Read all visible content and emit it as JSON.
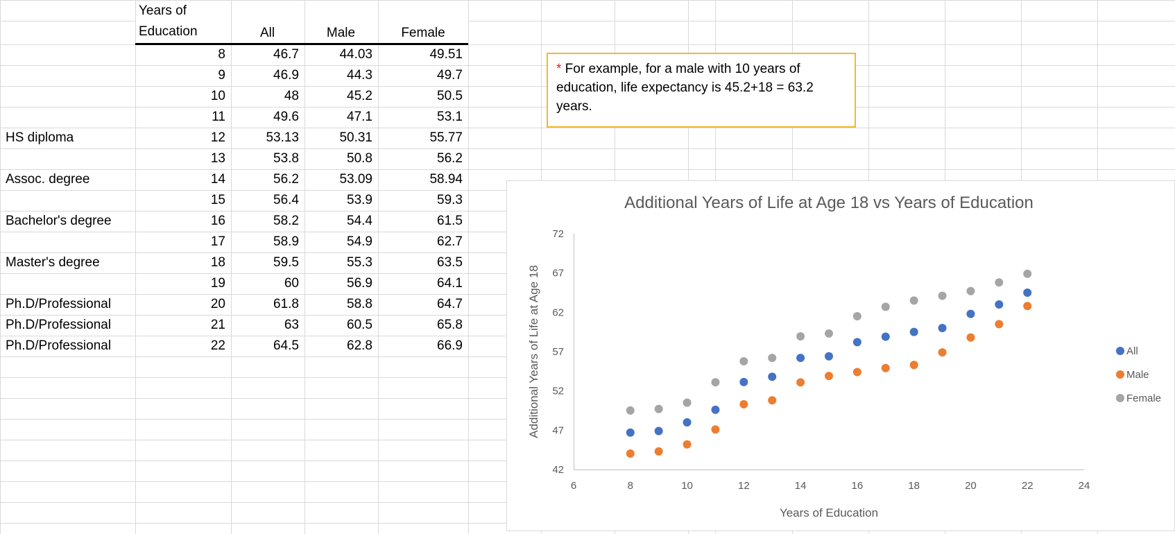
{
  "table": {
    "headers": {
      "years": [
        "Years of",
        "Education"
      ],
      "all": "All",
      "male": "Male",
      "female": "Female"
    },
    "rows": [
      {
        "label": "",
        "years": "8",
        "all": "46.7",
        "male": "44.03",
        "female": "49.51"
      },
      {
        "label": "",
        "years": "9",
        "all": "46.9",
        "male": "44.3",
        "female": "49.7"
      },
      {
        "label": "",
        "years": "10",
        "all": "48",
        "male": "45.2",
        "female": "50.5"
      },
      {
        "label": "",
        "years": "11",
        "all": "49.6",
        "male": "47.1",
        "female": "53.1"
      },
      {
        "label": "HS diploma",
        "years": "12",
        "all": "53.13",
        "male": "50.31",
        "female": "55.77"
      },
      {
        "label": "",
        "years": "13",
        "all": "53.8",
        "male": "50.8",
        "female": "56.2"
      },
      {
        "label": "Assoc. degree",
        "years": "14",
        "all": "56.2",
        "male": "53.09",
        "female": "58.94"
      },
      {
        "label": "",
        "years": "15",
        "all": "56.4",
        "male": "53.9",
        "female": "59.3"
      },
      {
        "label": "Bachelor's degree",
        "years": "16",
        "all": "58.2",
        "male": "54.4",
        "female": "61.5"
      },
      {
        "label": "",
        "years": "17",
        "all": "58.9",
        "male": "54.9",
        "female": "62.7"
      },
      {
        "label": "Master's degree",
        "years": "18",
        "all": "59.5",
        "male": "55.3",
        "female": "63.5"
      },
      {
        "label": "",
        "years": "19",
        "all": "60",
        "male": "56.9",
        "female": "64.1"
      },
      {
        "label": "Ph.D/Professional",
        "years": "20",
        "all": "61.8",
        "male": "58.8",
        "female": "64.7"
      },
      {
        "label": "Ph.D/Professional",
        "years": "21",
        "all": "63",
        "male": "60.5",
        "female": "65.8"
      },
      {
        "label": "Ph.D/Professional",
        "years": "22",
        "all": "64.5",
        "male": "62.8",
        "female": "66.9"
      }
    ]
  },
  "note": {
    "star": "*",
    "text": " For example, for a male with 10 years of education, life expectancy is 45.2+18 = 63.2 years."
  },
  "colors": {
    "all": "#4472c4",
    "male": "#ed7d31",
    "female": "#a5a5a5",
    "note_border": "#f2b92d",
    "gridline": "#d9d9d9"
  },
  "chart_data": {
    "type": "scatter",
    "title": "Additional Years of Life at Age 18 vs Years of Education",
    "xlabel": "Years of Education",
    "ylabel": "Additional Years of Life at Age 18",
    "xlim": [
      6,
      24
    ],
    "ylim": [
      42,
      72
    ],
    "xticks": [
      6,
      8,
      10,
      12,
      14,
      16,
      18,
      20,
      22,
      24
    ],
    "yticks": [
      42,
      47,
      52,
      57,
      62,
      67,
      72
    ],
    "grid": false,
    "legend": "right",
    "x": [
      8,
      9,
      10,
      11,
      12,
      13,
      14,
      15,
      16,
      17,
      18,
      19,
      20,
      21,
      22
    ],
    "series": [
      {
        "name": "All",
        "color": "#4472c4",
        "values": [
          46.7,
          46.9,
          48,
          49.6,
          53.13,
          53.8,
          56.2,
          56.4,
          58.2,
          58.9,
          59.5,
          60,
          61.8,
          63,
          64.5
        ]
      },
      {
        "name": "Male",
        "color": "#ed7d31",
        "values": [
          44.03,
          44.3,
          45.2,
          47.1,
          50.31,
          50.8,
          53.09,
          53.9,
          54.4,
          54.9,
          55.3,
          56.9,
          58.8,
          60.5,
          62.8
        ]
      },
      {
        "name": "Female",
        "color": "#a5a5a5",
        "values": [
          49.51,
          49.7,
          50.5,
          53.1,
          55.77,
          56.2,
          58.94,
          59.3,
          61.5,
          62.7,
          63.5,
          64.1,
          64.7,
          65.8,
          66.9
        ]
      }
    ]
  }
}
